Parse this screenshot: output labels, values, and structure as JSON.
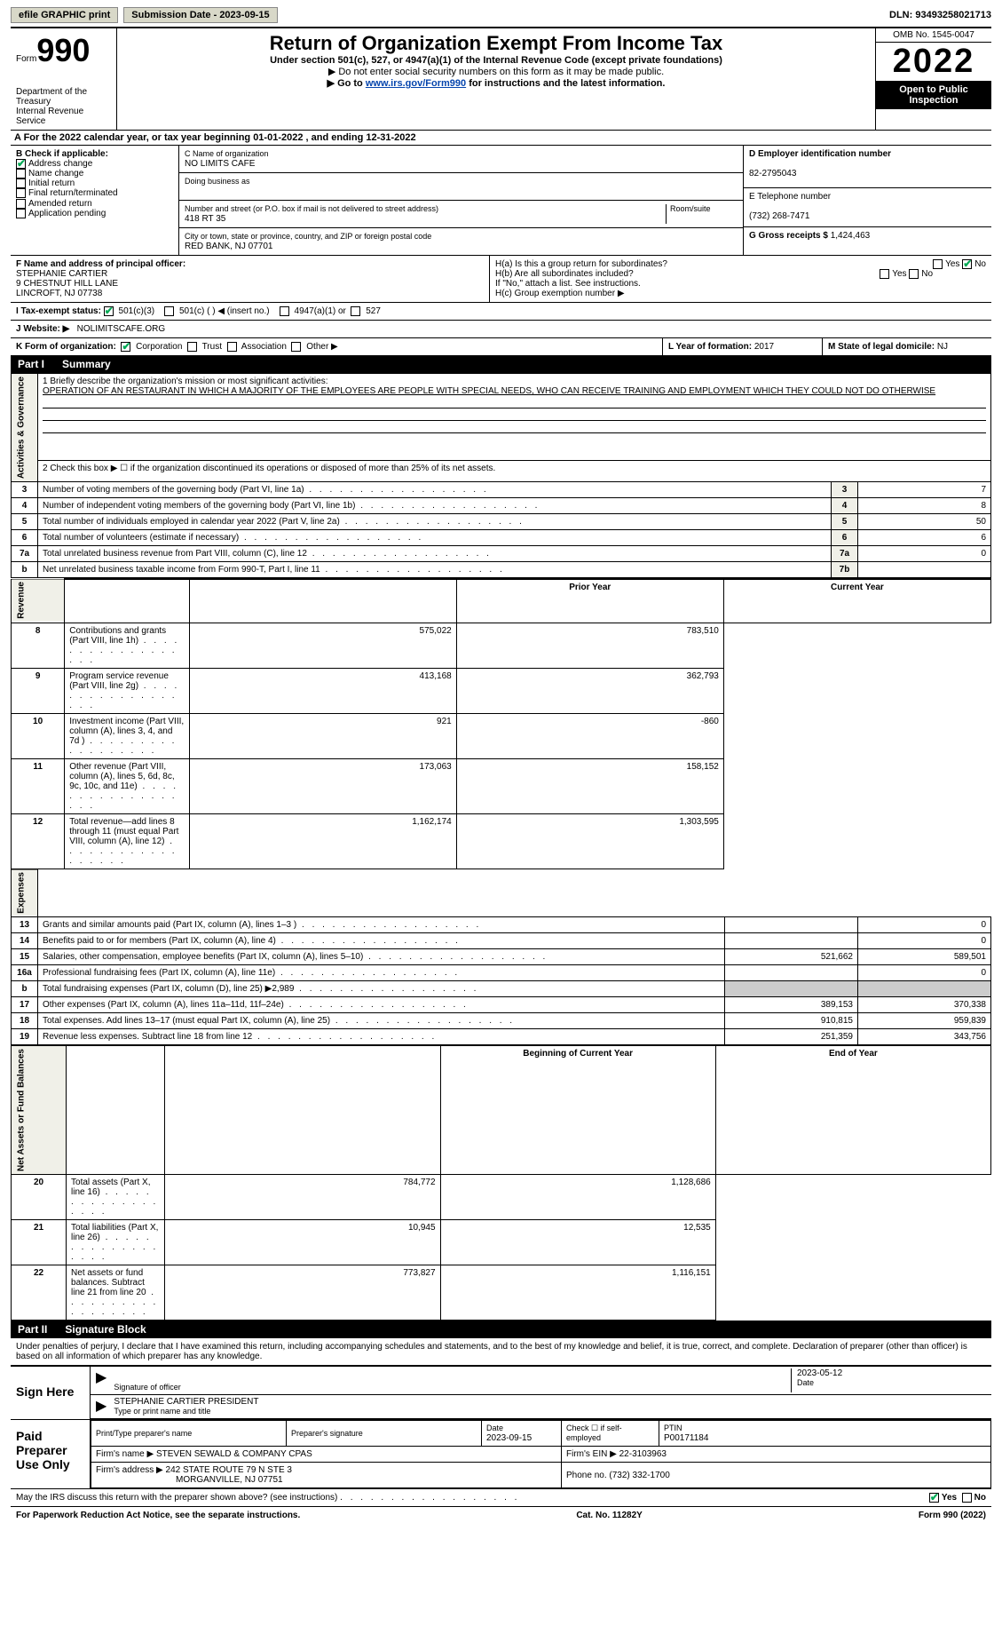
{
  "topbar": {
    "efile": "efile GRAPHIC print",
    "submission_label": "Submission Date - 2023-09-15",
    "dln_label": "DLN: 93493258021713"
  },
  "header": {
    "form_word": "Form",
    "form_num": "990",
    "dept": "Department of the Treasury",
    "irs": "Internal Revenue Service",
    "title": "Return of Organization Exempt From Income Tax",
    "subtitle": "Under section 501(c), 527, or 4947(a)(1) of the Internal Revenue Code (except private foundations)",
    "note1": "Do not enter social security numbers on this form as it may be made public.",
    "note2_pre": "Go to ",
    "note2_link": "www.irs.gov/Form990",
    "note2_post": " for instructions and the latest information.",
    "omb": "OMB No. 1545-0047",
    "year": "2022",
    "open": "Open to Public Inspection"
  },
  "section_a": "A For the 2022 calendar year, or tax year beginning 01-01-2022   , and ending 12-31-2022",
  "box_b": {
    "label": "B Check if applicable:",
    "items": [
      {
        "text": "Address change",
        "checked": true
      },
      {
        "text": "Name change",
        "checked": false
      },
      {
        "text": "Initial return",
        "checked": false
      },
      {
        "text": "Final return/terminated",
        "checked": false
      },
      {
        "text": "Amended return",
        "checked": false
      },
      {
        "text": "Application pending",
        "checked": false
      }
    ]
  },
  "box_c": {
    "name_label": "C Name of organization",
    "name": "NO LIMITS CAFE",
    "dba_label": "Doing business as",
    "addr_label": "Number and street (or P.O. box if mail is not delivered to street address)",
    "room_label": "Room/suite",
    "addr": "418 RT 35",
    "city_label": "City or town, state or province, country, and ZIP or foreign postal code",
    "city": "RED BANK, NJ  07701"
  },
  "box_d": {
    "label": "D Employer identification number",
    "value": "82-2795043"
  },
  "box_e": {
    "label": "E Telephone number",
    "value": "(732) 268-7471"
  },
  "box_g": {
    "label": "G Gross receipts $",
    "value": "1,424,463"
  },
  "box_f": {
    "label": "F  Name and address of principal officer:",
    "name": "STEPHANIE CARTIER",
    "addr1": "9 CHESTNUT HILL LANE",
    "addr2": "LINCROFT, NJ  07738"
  },
  "box_h": {
    "ha": "H(a)  Is this a group return for subordinates?",
    "hb": "H(b)  Are all subordinates included?",
    "hb_note": "If \"No,\" attach a list. See instructions.",
    "hc": "H(c)  Group exemption number ▶",
    "yes": "Yes",
    "no": "No"
  },
  "box_i": {
    "label": "I   Tax-exempt status:",
    "opt1": "501(c)(3)",
    "opt2": "501(c) (   ) ◀ (insert no.)",
    "opt3": "4947(a)(1) or",
    "opt4": "527"
  },
  "box_j": {
    "label": "J   Website: ▶",
    "value": "NOLIMITSCAFE.ORG"
  },
  "box_k": {
    "label": "K Form of organization:",
    "opts": [
      "Corporation",
      "Trust",
      "Association",
      "Other ▶"
    ]
  },
  "box_l": {
    "label": "L Year of formation:",
    "value": "2017"
  },
  "box_m": {
    "label": "M State of legal domicile:",
    "value": "NJ"
  },
  "part1": {
    "header_num": "Part I",
    "header_title": "Summary",
    "line1_label": "1   Briefly describe the organization's mission or most significant activities:",
    "mission": "OPERATION OF AN RESTAURANT IN WHICH A MAJORITY OF THE EMPLOYEES ARE PEOPLE WITH SPECIAL NEEDS, WHO CAN RECEIVE TRAINING AND EMPLOYMENT WHICH THEY COULD NOT DO OTHERWISE",
    "line2": "2   Check this box ▶ ☐  if the organization discontinued its operations or disposed of more than 25% of its net assets.",
    "vlabels": {
      "gov": "Activities & Governance",
      "rev": "Revenue",
      "exp": "Expenses",
      "net": "Net Assets or Fund Balances"
    },
    "col_prior": "Prior Year",
    "col_current": "Current Year",
    "col_begin": "Beginning of Current Year",
    "col_end": "End of Year",
    "rows_gov": [
      {
        "n": "3",
        "text": "Number of voting members of the governing body (Part VI, line 1a)",
        "ref": "3",
        "val": "7"
      },
      {
        "n": "4",
        "text": "Number of independent voting members of the governing body (Part VI, line 1b)",
        "ref": "4",
        "val": "8"
      },
      {
        "n": "5",
        "text": "Total number of individuals employed in calendar year 2022 (Part V, line 2a)",
        "ref": "5",
        "val": "50"
      },
      {
        "n": "6",
        "text": "Total number of volunteers (estimate if necessary)",
        "ref": "6",
        "val": "6"
      },
      {
        "n": "7a",
        "text": "Total unrelated business revenue from Part VIII, column (C), line 12",
        "ref": "7a",
        "val": "0"
      },
      {
        "n": "b",
        "text": "Net unrelated business taxable income from Form 990-T, Part I, line 11",
        "ref": "7b",
        "val": ""
      }
    ],
    "rows_rev": [
      {
        "n": "8",
        "text": "Contributions and grants (Part VIII, line 1h)",
        "prior": "575,022",
        "curr": "783,510"
      },
      {
        "n": "9",
        "text": "Program service revenue (Part VIII, line 2g)",
        "prior": "413,168",
        "curr": "362,793"
      },
      {
        "n": "10",
        "text": "Investment income (Part VIII, column (A), lines 3, 4, and 7d )",
        "prior": "921",
        "curr": "-860"
      },
      {
        "n": "11",
        "text": "Other revenue (Part VIII, column (A), lines 5, 6d, 8c, 9c, 10c, and 11e)",
        "prior": "173,063",
        "curr": "158,152"
      },
      {
        "n": "12",
        "text": "Total revenue—add lines 8 through 11 (must equal Part VIII, column (A), line 12)",
        "prior": "1,162,174",
        "curr": "1,303,595"
      }
    ],
    "rows_exp": [
      {
        "n": "13",
        "text": "Grants and similar amounts paid (Part IX, column (A), lines 1–3 )",
        "prior": "",
        "curr": "0"
      },
      {
        "n": "14",
        "text": "Benefits paid to or for members (Part IX, column (A), line 4)",
        "prior": "",
        "curr": "0"
      },
      {
        "n": "15",
        "text": "Salaries, other compensation, employee benefits (Part IX, column (A), lines 5–10)",
        "prior": "521,662",
        "curr": "589,501"
      },
      {
        "n": "16a",
        "text": "Professional fundraising fees (Part IX, column (A), line 11e)",
        "prior": "",
        "curr": "0"
      },
      {
        "n": "b",
        "text": "Total fundraising expenses (Part IX, column (D), line 25) ▶2,989",
        "prior": "SHADE",
        "curr": "SHADE"
      },
      {
        "n": "17",
        "text": "Other expenses (Part IX, column (A), lines 11a–11d, 11f–24e)",
        "prior": "389,153",
        "curr": "370,338"
      },
      {
        "n": "18",
        "text": "Total expenses. Add lines 13–17 (must equal Part IX, column (A), line 25)",
        "prior": "910,815",
        "curr": "959,839"
      },
      {
        "n": "19",
        "text": "Revenue less expenses. Subtract line 18 from line 12",
        "prior": "251,359",
        "curr": "343,756"
      }
    ],
    "rows_net": [
      {
        "n": "20",
        "text": "Total assets (Part X, line 16)",
        "prior": "784,772",
        "curr": "1,128,686"
      },
      {
        "n": "21",
        "text": "Total liabilities (Part X, line 26)",
        "prior": "10,945",
        "curr": "12,535"
      },
      {
        "n": "22",
        "text": "Net assets or fund balances. Subtract line 21 from line 20",
        "prior": "773,827",
        "curr": "1,116,151"
      }
    ]
  },
  "part2": {
    "header_num": "Part II",
    "header_title": "Signature Block",
    "penalties": "Under penalties of perjury, I declare that I have examined this return, including accompanying schedules and statements, and to the best of my knowledge and belief, it is true, correct, and complete. Declaration of preparer (other than officer) is based on all information of which preparer has any knowledge.",
    "sign_here": "Sign Here",
    "sig_officer": "Signature of officer",
    "sig_date": "2023-05-12",
    "date_label": "Date",
    "officer_name": "STEPHANIE CARTIER  PRESIDENT",
    "type_name": "Type or print name and title",
    "paid_prep": "Paid Preparer Use Only",
    "prep_name_label": "Print/Type preparer's name",
    "prep_sig_label": "Preparer's signature",
    "prep_date_label": "Date",
    "prep_date": "2023-09-15",
    "check_self": "Check ☐ if self-employed",
    "ptin_label": "PTIN",
    "ptin": "P00171184",
    "firm_name_label": "Firm's name    ▶",
    "firm_name": "STEVEN SEWALD & COMPANY CPAS",
    "firm_ein_label": "Firm's EIN ▶",
    "firm_ein": "22-3103963",
    "firm_addr_label": "Firm's address ▶",
    "firm_addr1": "242 STATE ROUTE 79 N STE 3",
    "firm_addr2": "MORGANVILLE, NJ  07751",
    "phone_label": "Phone no.",
    "phone": "(732) 332-1700",
    "discuss": "May the IRS discuss this return with the preparer shown above? (see instructions)",
    "yes": "Yes",
    "no": "No"
  },
  "footer": {
    "left": "For Paperwork Reduction Act Notice, see the separate instructions.",
    "center": "Cat. No. 11282Y",
    "right": "Form 990 (2022)"
  }
}
